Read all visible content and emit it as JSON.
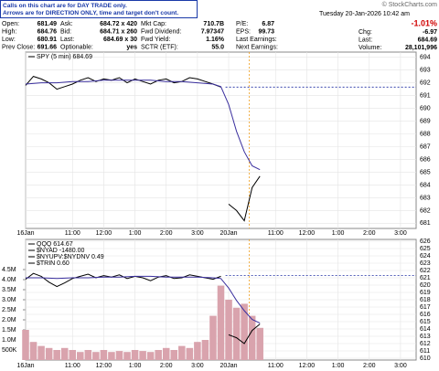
{
  "notice": [
    "Calls on this chart are for DAY TRADE only.",
    "Arrows are for DIRECTION ONLY, time and target don't count."
  ],
  "quote": {
    "rows": [
      [
        [
          "Open:",
          "681.49"
        ],
        [
          "Ask:",
          "684.72 x 420"
        ],
        [
          "Mkt Cap:",
          "710.7B"
        ],
        [
          "P/E:",
          "6.87"
        ]
      ],
      [
        [
          "High:",
          "684.76"
        ],
        [
          "Bid:",
          "684.71 x 260"
        ],
        [
          "Fwd Dividend:",
          "7.97347"
        ],
        [
          "EPS:",
          "99.73"
        ]
      ],
      [
        [
          "Low:",
          "680.91"
        ],
        [
          "Last:",
          "684.69 x 30"
        ],
        [
          "Fwd Yield:",
          "1.16%"
        ],
        [
          "Last Earnings:"
        ]
      ],
      [
        [
          "Prev Close:",
          "691.66"
        ],
        [
          "Optionable:",
          "yes"
        ],
        [
          "SCTR (ETF):",
          "55.0"
        ],
        [
          "Next Earnings:"
        ]
      ]
    ]
  },
  "header_right": {
    "source": "© StockCharts.com",
    "date": "Tuesday 20-Jan-2026 10:42 am",
    "change_pct": "-1.01%",
    "rows": [
      [
        "Chg:",
        "-6.97"
      ],
      [
        "Last:",
        "684.69"
      ],
      [
        "Volume:",
        "28,101,996"
      ]
    ]
  },
  "chart_data": [
    {
      "type": "line",
      "xlim": [
        0,
        12.5
      ],
      "ylim": [
        680.6,
        694.4
      ],
      "yticks": [
        681,
        682,
        683,
        684,
        685,
        686,
        687,
        688,
        689,
        690,
        691,
        692,
        693,
        694
      ],
      "xticks": [
        {
          "value": 0,
          "label": "16Jan"
        },
        {
          "value": 1.5,
          "label": "11:00"
        },
        {
          "value": 2.5,
          "label": "12:00"
        },
        {
          "value": 3.5,
          "label": "1:00"
        },
        {
          "value": 4.5,
          "label": "2:00"
        },
        {
          "value": 5.5,
          "label": "3:00"
        },
        {
          "value": 6.5,
          "label": "20Jan"
        },
        {
          "value": 8,
          "label": "11:00"
        },
        {
          "value": 9,
          "label": "12:00"
        },
        {
          "value": 10,
          "label": "1:00"
        },
        {
          "value": 11,
          "label": "2:00"
        },
        {
          "value": 12,
          "label": "3:00"
        }
      ],
      "grid": true,
      "ref_value": 691.66,
      "marker_x": 7.16,
      "series": [
        {
          "name": "SPY (5 min) 684.69",
          "color": "#000000",
          "x": [
            0,
            0.25,
            0.5,
            0.75,
            1,
            1.25,
            1.5,
            1.75,
            2,
            2.25,
            2.5,
            2.75,
            3,
            3.25,
            3.5,
            3.75,
            4,
            4.25,
            4.5,
            4.75,
            5,
            5.25,
            5.5,
            5.75,
            6,
            6.25,
            6.375,
            6.5,
            6.75,
            7,
            7.25,
            7.5
          ],
          "values": [
            691.8,
            692.5,
            692.3,
            692.0,
            691.5,
            691.7,
            691.9,
            692.2,
            692.4,
            692.1,
            692.3,
            692.2,
            692.4,
            692.0,
            692.3,
            692.1,
            691.9,
            692.2,
            692.3,
            692.0,
            692.1,
            692.4,
            692.3,
            692.1,
            691.9,
            691.66,
            null,
            682.5,
            682.0,
            681.2,
            683.8,
            684.69
          ]
        },
        {
          "color": "#3a2f9e",
          "x": [
            0,
            0.5,
            1,
            1.5,
            2,
            2.5,
            3,
            3.5,
            4,
            4.5,
            5,
            5.5,
            6,
            6.25,
            6.5,
            6.75,
            7,
            7.25,
            7.5
          ],
          "values": [
            691.9,
            692.0,
            692.0,
            692.1,
            692.1,
            692.2,
            692.2,
            692.2,
            692.2,
            692.1,
            692.1,
            692.0,
            691.9,
            691.7,
            690.3,
            688.2,
            686.6,
            685.5,
            685.2
          ]
        }
      ]
    },
    {
      "type": "line",
      "xlim": [
        0,
        12.5
      ],
      "ylim": [
        609.75,
        626.25
      ],
      "yticks": [
        610,
        611,
        612,
        613,
        614,
        615,
        616,
        617,
        618,
        619,
        620,
        621,
        622,
        623,
        624,
        625,
        626
      ],
      "y2lim": [
        0,
        6000000
      ],
      "y2ticks": [
        {
          "value": 500000,
          "label": "500K"
        },
        {
          "value": 1000000,
          "label": "1.0M"
        },
        {
          "value": 1500000,
          "label": "1.5M"
        },
        {
          "value": 2000000,
          "label": "2.0M"
        },
        {
          "value": 2500000,
          "label": "2.5M"
        },
        {
          "value": 3000000,
          "label": "3.0M"
        },
        {
          "value": 3500000,
          "label": "3.5M"
        },
        {
          "value": 4000000,
          "label": "4.0M"
        },
        {
          "value": 4500000,
          "label": "4.5M"
        }
      ],
      "xticks": [
        {
          "value": 0,
          "label": "16Jan"
        },
        {
          "value": 1.5,
          "label": "11:00"
        },
        {
          "value": 2.5,
          "label": "12:00"
        },
        {
          "value": 3.5,
          "label": "1:00"
        },
        {
          "value": 4.5,
          "label": "2:00"
        },
        {
          "value": 5.5,
          "label": "3:00"
        },
        {
          "value": 6.5,
          "label": "20Jan"
        },
        {
          "value": 8,
          "label": "11:00"
        },
        {
          "value": 9,
          "label": "12:00"
        },
        {
          "value": 10,
          "label": "1:00"
        },
        {
          "value": 11,
          "label": "2:00"
        },
        {
          "value": 12,
          "label": "3:00"
        }
      ],
      "grid": true,
      "ref_value": 621.3,
      "marker_x": 7.16,
      "legend_extra": [
        "$NYAD -1480.00",
        "$NYUPV:$NYDNV 0.49",
        "$TRIN 0.60"
      ],
      "series": [
        {
          "kind": "bar",
          "axis": "y2",
          "color": "#d9a3ad",
          "x": [
            0,
            0.25,
            0.5,
            0.75,
            1,
            1.25,
            1.5,
            1.75,
            2,
            2.25,
            2.5,
            2.75,
            3,
            3.25,
            3.5,
            3.75,
            4,
            4.25,
            4.5,
            4.75,
            5,
            5.25,
            5.5,
            5.75,
            6,
            6.25,
            6.5,
            6.75,
            7,
            7.25,
            7.5
          ],
          "values": [
            1500000,
            900000,
            700000,
            600000,
            500000,
            600000,
            500000,
            400000,
            500000,
            400000,
            500000,
            400000,
            450000,
            400000,
            500000,
            450000,
            400000,
            500000,
            600000,
            500000,
            700000,
            600000,
            900000,
            1000000,
            2200000,
            3700000,
            3000000,
            2600000,
            2800000,
            2200000,
            1600000
          ]
        },
        {
          "name": "QQQ 614.67",
          "color": "#000000",
          "x": [
            0,
            0.25,
            0.5,
            0.75,
            1,
            1.25,
            1.5,
            1.75,
            2,
            2.25,
            2.5,
            2.75,
            3,
            3.25,
            3.5,
            3.75,
            4,
            4.25,
            4.5,
            4.75,
            5,
            5.25,
            5.5,
            5.75,
            6,
            6.25,
            6.375,
            6.5,
            6.75,
            7,
            7.25,
            7.5
          ],
          "values": [
            620.8,
            621.6,
            621.2,
            620.4,
            619.8,
            620.3,
            620.9,
            621.2,
            621.5,
            621.0,
            621.3,
            621.1,
            621.4,
            620.9,
            621.2,
            621.0,
            620.6,
            621.1,
            621.3,
            620.9,
            621.0,
            621.4,
            621.2,
            621.0,
            620.8,
            621.2,
            null,
            613.2,
            612.8,
            612.0,
            613.8,
            614.67
          ]
        },
        {
          "color": "#3a2f9e",
          "x": [
            0,
            0.5,
            1,
            1.5,
            2,
            2.5,
            3,
            3.5,
            4,
            4.5,
            5,
            5.5,
            6,
            6.25,
            6.5,
            6.75,
            7,
            7.25,
            7.5
          ],
          "values": [
            621.0,
            621.0,
            620.9,
            621.0,
            621.0,
            621.1,
            621.1,
            621.2,
            621.2,
            621.1,
            621.1,
            621.1,
            621.0,
            620.9,
            619.6,
            617.9,
            616.5,
            615.3,
            614.8
          ]
        }
      ]
    }
  ]
}
